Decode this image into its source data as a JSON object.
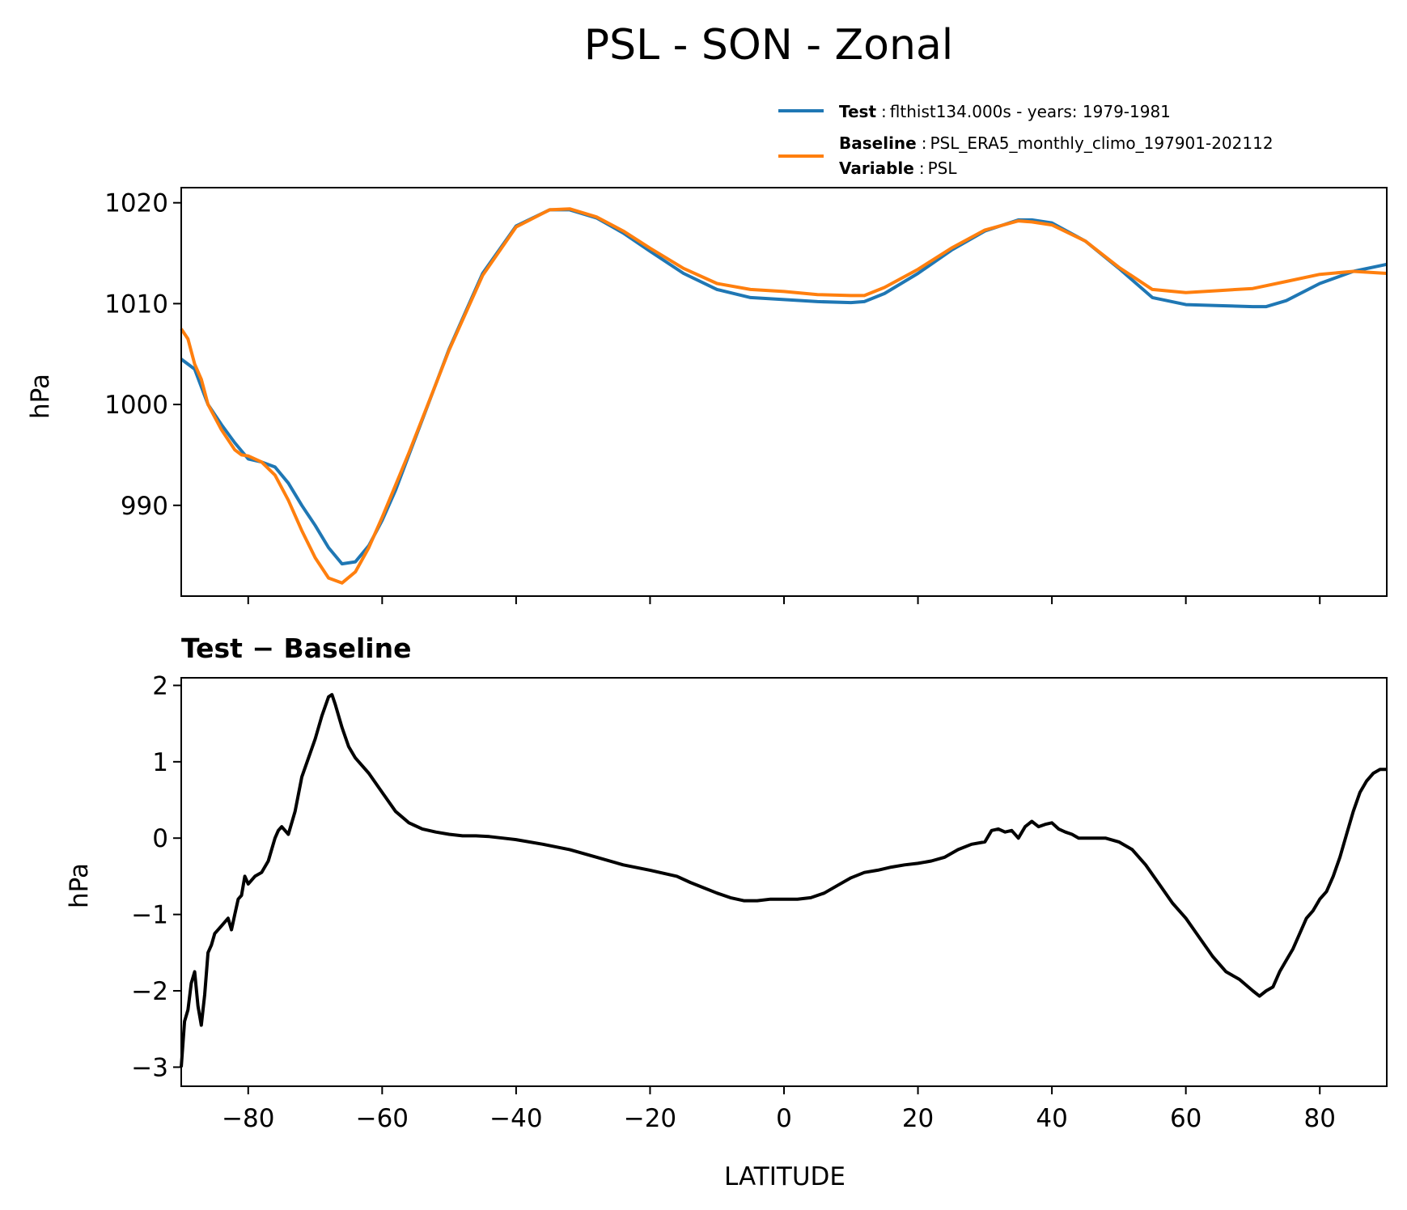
{
  "colors": {
    "test": "#1f77b4",
    "baseline": "#ff7f0e",
    "diff": "#000000"
  },
  "chart_data": [
    {
      "type": "line",
      "title": "PSL - SON - Zonal",
      "xlabel": "",
      "ylabel": "hPa",
      "xlim": [
        -90,
        90
      ],
      "ylim": [
        981,
        1021.5
      ],
      "xticks": [
        -80,
        -60,
        -40,
        -20,
        0,
        20,
        40,
        60,
        80
      ],
      "yticks": [
        990,
        1000,
        1010,
        1020
      ],
      "ytick_labels": [
        "990",
        "1000",
        "1010",
        "1020"
      ],
      "legend": {
        "placement": "above-top-right",
        "entries": [
          {
            "series": "test",
            "lines": [
              {
                "key": "Test",
                "sep": ":",
                "value": "flthist134.000s - years: 1979-1981"
              }
            ]
          },
          {
            "series": "baseline",
            "lines": [
              {
                "key": "Baseline",
                "sep": ":",
                "value": "PSL_ERA5_monthly_climo_197901-202112"
              },
              {
                "key": "Variable",
                "sep": ":",
                "value": "PSL"
              }
            ]
          }
        ]
      },
      "series": [
        {
          "name": "Test",
          "color": "#1f77b4",
          "x": [
            -90,
            -88,
            -86,
            -84,
            -82,
            -80,
            -78,
            -76,
            -74,
            -72,
            -70,
            -68,
            -66,
            -64,
            -62,
            -60,
            -58,
            -56,
            -54,
            -52,
            -50,
            -45,
            -40,
            -35,
            -32,
            -28,
            -24,
            -20,
            -15,
            -10,
            -5,
            0,
            5,
            10,
            12,
            15,
            20,
            25,
            30,
            35,
            37,
            40,
            45,
            50,
            55,
            60,
            65,
            70,
            72,
            75,
            80,
            85,
            90
          ],
          "values": [
            1004.5,
            1003.5,
            1000,
            998,
            996.2,
            994.6,
            994.3,
            993.8,
            992.2,
            990,
            988,
            985.8,
            984.2,
            984.4,
            986,
            988.5,
            991.5,
            995,
            998.5,
            1002,
            1005.5,
            1013,
            1017.7,
            1019.3,
            1019.3,
            1018.5,
            1017,
            1015.2,
            1013,
            1011.4,
            1010.6,
            1010.4,
            1010.2,
            1010.1,
            1010.2,
            1011,
            1013,
            1015.3,
            1017.2,
            1018.3,
            1018.3,
            1018,
            1016.2,
            1013.5,
            1010.6,
            1009.9,
            1009.8,
            1009.7,
            1009.7,
            1010.3,
            1012,
            1013.2,
            1013.9
          ]
        },
        {
          "name": "Baseline",
          "color": "#ff7f0e",
          "x": [
            -90,
            -89,
            -88,
            -87,
            -86,
            -84,
            -82,
            -81,
            -80,
            -78,
            -76,
            -74,
            -72,
            -70,
            -68,
            -66,
            -64,
            -62,
            -60,
            -58,
            -56,
            -54,
            -52,
            -50,
            -45,
            -40,
            -35,
            -32,
            -28,
            -24,
            -20,
            -15,
            -10,
            -5,
            0,
            5,
            10,
            12,
            15,
            20,
            25,
            30,
            35,
            37,
            40,
            45,
            50,
            55,
            60,
            65,
            70,
            75,
            80,
            85,
            90
          ],
          "values": [
            1007.5,
            1006.5,
            1004,
            1002.5,
            1000,
            997.5,
            995.5,
            995,
            994.9,
            994.3,
            993,
            990.5,
            987.5,
            984.8,
            982.8,
            982.3,
            983.4,
            985.8,
            988.8,
            992,
            995.2,
            998.6,
            1002,
            1005.4,
            1012.8,
            1017.6,
            1019.3,
            1019.4,
            1018.6,
            1017.2,
            1015.5,
            1013.5,
            1012,
            1011.4,
            1011.2,
            1010.9,
            1010.8,
            1010.8,
            1011.6,
            1013.4,
            1015.5,
            1017.3,
            1018.2,
            1018.1,
            1017.8,
            1016.2,
            1013.6,
            1011.4,
            1011.1,
            1011.3,
            1011.5,
            1012.2,
            1012.9,
            1013.2,
            1013
          ]
        }
      ]
    },
    {
      "type": "line",
      "title": "Test − Baseline",
      "xlabel": "LATITUDE",
      "ylabel": "hPa",
      "xlim": [
        -90,
        90
      ],
      "ylim": [
        -3.25,
        2.1
      ],
      "xticks": [
        -80,
        -60,
        -40,
        -20,
        0,
        20,
        40,
        60,
        80
      ],
      "xtick_labels": [
        "−80",
        "−60",
        "−40",
        "−20",
        "0",
        "20",
        "40",
        "60",
        "80"
      ],
      "yticks": [
        -3,
        -2,
        -1,
        0,
        1,
        2
      ],
      "ytick_labels": [
        "−3",
        "−2",
        "−1",
        "0",
        "1",
        "2"
      ],
      "series": [
        {
          "name": "Test − Baseline",
          "color": "#000000",
          "x": [
            -90,
            -89.5,
            -89,
            -88.5,
            -88,
            -87.5,
            -87,
            -86.5,
            -86,
            -85.5,
            -85,
            -84,
            -83,
            -82.5,
            -82,
            -81.5,
            -81,
            -80.5,
            -80,
            -79,
            -78,
            -77,
            -76,
            -75.5,
            -75,
            -74.5,
            -74,
            -73,
            -72,
            -71,
            -70,
            -69,
            -68,
            -67.5,
            -67,
            -66,
            -65,
            -64,
            -62,
            -60,
            -58,
            -56,
            -54,
            -52,
            -50,
            -48,
            -46,
            -44,
            -42,
            -40,
            -36,
            -32,
            -28,
            -24,
            -20,
            -16,
            -14,
            -12,
            -10,
            -8,
            -6,
            -4,
            -2,
            0,
            2,
            4,
            6,
            8,
            10,
            12,
            14,
            16,
            18,
            20,
            22,
            24,
            26,
            28,
            30,
            31,
            32,
            33,
            34,
            35,
            36,
            37,
            38,
            39,
            40,
            41,
            42,
            43,
            44,
            46,
            48,
            50,
            52,
            54,
            56,
            58,
            60,
            62,
            64,
            66,
            68,
            70,
            71,
            72,
            73,
            74,
            75,
            76,
            77,
            78,
            79,
            80,
            81,
            82,
            83,
            84,
            85,
            86,
            87,
            88,
            89,
            90
          ],
          "values": [
            -3.0,
            -2.4,
            -2.25,
            -1.9,
            -1.75,
            -2.2,
            -2.45,
            -2.05,
            -1.5,
            -1.4,
            -1.25,
            -1.15,
            -1.05,
            -1.2,
            -1.0,
            -0.8,
            -0.75,
            -0.5,
            -0.6,
            -0.5,
            -0.45,
            -0.3,
            0.0,
            0.1,
            0.15,
            0.1,
            0.05,
            0.35,
            0.8,
            1.05,
            1.3,
            1.6,
            1.85,
            1.88,
            1.75,
            1.45,
            1.2,
            1.05,
            0.85,
            0.6,
            0.35,
            0.2,
            0.12,
            0.08,
            0.05,
            0.03,
            0.03,
            0.02,
            0.0,
            -0.02,
            -0.08,
            -0.15,
            -0.25,
            -0.35,
            -0.42,
            -0.5,
            -0.58,
            -0.65,
            -0.72,
            -0.78,
            -0.82,
            -0.82,
            -0.8,
            -0.8,
            -0.8,
            -0.78,
            -0.72,
            -0.62,
            -0.52,
            -0.45,
            -0.42,
            -0.38,
            -0.35,
            -0.33,
            -0.3,
            -0.25,
            -0.15,
            -0.08,
            -0.05,
            0.1,
            0.12,
            0.08,
            0.1,
            0.0,
            0.15,
            0.22,
            0.15,
            0.18,
            0.2,
            0.12,
            0.08,
            0.05,
            0.0,
            0.0,
            0.0,
            -0.05,
            -0.15,
            -0.35,
            -0.6,
            -0.85,
            -1.05,
            -1.3,
            -1.55,
            -1.75,
            -1.85,
            -2.0,
            -2.07,
            -2.0,
            -1.95,
            -1.75,
            -1.6,
            -1.45,
            -1.25,
            -1.05,
            -0.95,
            -0.8,
            -0.7,
            -0.5,
            -0.25,
            0.05,
            0.35,
            0.6,
            0.75,
            0.85,
            0.9,
            0.9
          ]
        }
      ]
    }
  ]
}
